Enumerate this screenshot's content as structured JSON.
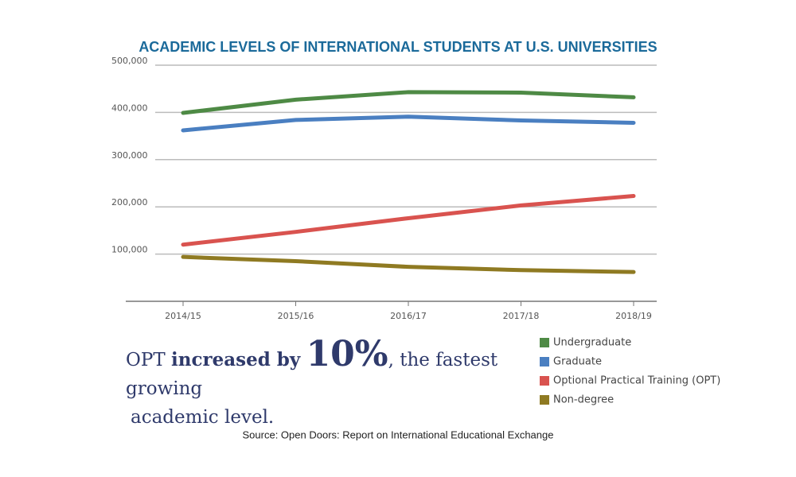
{
  "chart_data": {
    "type": "line",
    "title": "ACADEMIC LEVELS OF INTERNATIONAL STUDENTS AT U.S. UNIVERSITIES",
    "categories": [
      "2014/15",
      "2015/16",
      "2016/17",
      "2017/18",
      "2018/19"
    ],
    "series": [
      {
        "name": "Undergraduate",
        "color": "#4e8a45",
        "values": [
          399000,
          427000,
          443000,
          442000,
          432000
        ]
      },
      {
        "name": "Graduate",
        "color": "#4a7fc1",
        "values": [
          362000,
          384000,
          391000,
          383000,
          378000
        ]
      },
      {
        "name": "Optional Practical Training (OPT)",
        "color": "#d9534f",
        "values": [
          120000,
          147000,
          176000,
          203000,
          223000
        ]
      },
      {
        "name": "Non-degree",
        "color": "#8f7a22",
        "values": [
          94000,
          85000,
          73000,
          66000,
          62000
        ]
      }
    ],
    "ylim": [
      0,
      500000
    ],
    "yticks": [
      {
        "value": 100000,
        "label": "100,000"
      },
      {
        "value": 200000,
        "label": "200,000"
      },
      {
        "value": 300000,
        "label": "300,000"
      },
      {
        "value": 400000,
        "label": "400,000"
      },
      {
        "value": 500000,
        "label": "500,000"
      }
    ],
    "grid": true,
    "legend": "bottom-right",
    "annotation": [
      "OPT",
      "increased by",
      "10%",
      ", the fastest growing",
      "academic level."
    ],
    "source": "Source: Open Doors: Report on International Educational Exchange"
  }
}
